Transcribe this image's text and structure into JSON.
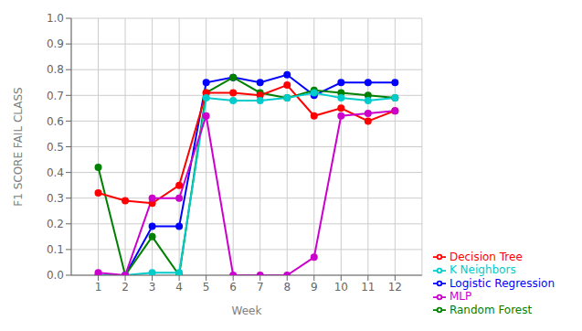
{
  "chart_data": {
    "type": "line",
    "xlabel": "Week",
    "ylabel": "F1 SCORE FAIL CLASS",
    "x": [
      1,
      2,
      3,
      4,
      5,
      6,
      7,
      8,
      9,
      10,
      11,
      12
    ],
    "series": [
      {
        "name": "Logistic Regression",
        "color": "#0000ff",
        "marker": "circle",
        "values": [
          0.0,
          0.0,
          0.19,
          0.19,
          0.75,
          0.77,
          0.75,
          0.78,
          0.7,
          0.75,
          0.75,
          0.75
        ]
      },
      {
        "name": "Random Forest",
        "color": "#008000",
        "marker": "circle",
        "values": [
          0.42,
          0.0,
          0.15,
          0.0,
          0.71,
          0.77,
          0.71,
          0.69,
          0.72,
          0.71,
          0.7,
          0.69
        ]
      },
      {
        "name": "Decision Tree",
        "color": "#ff0000",
        "marker": "circle",
        "values": [
          0.32,
          0.29,
          0.28,
          0.35,
          0.71,
          0.71,
          0.7,
          0.74,
          0.62,
          0.65,
          0.6,
          0.64
        ]
      },
      {
        "name": "K Neighbors",
        "color": "#00cccc",
        "marker": "circle",
        "values": [
          0.0,
          0.0,
          0.01,
          0.01,
          0.69,
          0.68,
          0.68,
          0.69,
          0.71,
          0.69,
          0.68,
          0.69
        ]
      },
      {
        "name": "MLP",
        "color": "#cc00cc",
        "marker": "circle",
        "values": [
          0.01,
          0.0,
          0.3,
          0.3,
          0.62,
          0.0,
          0.0,
          0.0,
          0.07,
          0.62,
          0.63,
          0.64
        ]
      }
    ],
    "xlim": [
      0,
      13
    ],
    "xticks": [
      1,
      2,
      3,
      4,
      5,
      6,
      7,
      8,
      9,
      10,
      11,
      12
    ],
    "ylim": [
      0,
      1
    ],
    "yticks": [
      {
        "value": 0,
        "label": "0.0"
      },
      0.1,
      0.2,
      0.3,
      0.4,
      0.5,
      0.6,
      0.7,
      0.8,
      0.9,
      {
        "value": 1,
        "label": "1.0"
      }
    ],
    "grid": true,
    "legend": "lower right"
  }
}
